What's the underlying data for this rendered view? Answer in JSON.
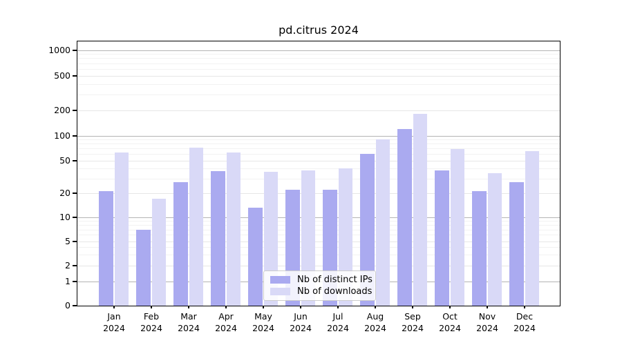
{
  "title": "pd.citrus 2024",
  "chart_data": {
    "type": "bar",
    "title": "pd.citrus 2024",
    "xlabel": "",
    "ylabel": "",
    "yscale": "symlog",
    "grid": true,
    "legend_position": "lower center",
    "ylim": [
      0,
      1270
    ],
    "yticks": [
      0,
      1,
      2,
      5,
      10,
      20,
      50,
      100,
      200,
      500,
      1000
    ],
    "ytick_labels": [
      "0",
      "1",
      "2",
      "5",
      "10",
      "20",
      "50",
      "100",
      "200",
      "500",
      "1000"
    ],
    "categories": [
      "Jan 2024",
      "Feb 2024",
      "Mar 2024",
      "Apr 2024",
      "May 2024",
      "Jun 2024",
      "Jul 2024",
      "Aug 2024",
      "Sep 2024",
      "Oct 2024",
      "Nov 2024",
      "Dec 2024"
    ],
    "series": [
      {
        "name": "Nb of distinct IPs",
        "color": "#aaaaf0",
        "values": [
          21,
          7,
          27,
          37,
          13,
          22,
          22,
          60,
          120,
          38,
          21,
          27
        ]
      },
      {
        "name": "Nb of downloads",
        "color": "#d9d9f7",
        "values": [
          62,
          17,
          71,
          62,
          36,
          38,
          40,
          90,
          180,
          69,
          35,
          65
        ]
      }
    ]
  }
}
